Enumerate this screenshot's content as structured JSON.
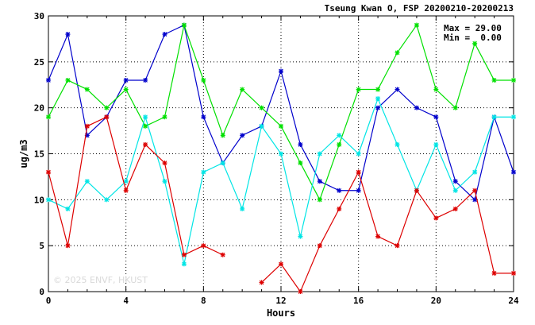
{
  "chart_data": {
    "type": "line",
    "title": "Tseung Kwan O, FSP 20200210-20200213",
    "xlabel": "Hours",
    "ylabel": "ug/m3",
    "xlim": [
      0,
      24
    ],
    "ylim": [
      0,
      30
    ],
    "xticks": [
      0,
      4,
      8,
      12,
      16,
      20,
      24
    ],
    "yticks": [
      0,
      5,
      10,
      15,
      20,
      25,
      30
    ],
    "grid": true,
    "x": [
      0,
      1,
      2,
      3,
      4,
      5,
      6,
      7,
      8,
      9,
      10,
      11,
      12,
      13,
      14,
      15,
      16,
      17,
      18,
      19,
      20,
      21,
      22,
      23,
      24
    ],
    "series": [
      {
        "color": "#0000cc",
        "values": [
          23,
          28,
          17,
          19,
          23,
          23,
          28,
          29,
          19,
          14,
          17,
          18,
          24,
          16,
          12,
          11,
          11,
          20,
          22,
          20,
          19,
          12,
          10,
          19,
          13
        ]
      },
      {
        "color": "#00e000",
        "values": [
          19,
          23,
          22,
          20,
          22,
          18,
          19,
          29,
          23,
          17,
          22,
          20,
          18,
          14,
          10,
          16,
          22,
          22,
          26,
          29,
          22,
          20,
          27,
          23,
          23
        ]
      },
      {
        "color": "#00e5e5",
        "values": [
          10,
          9,
          12,
          10,
          12,
          19,
          12,
          3,
          13,
          14,
          9,
          18,
          15,
          6,
          15,
          17,
          15,
          21,
          16,
          11,
          16,
          11,
          13,
          19,
          19
        ]
      },
      {
        "color": "#dd0000",
        "values": [
          13,
          5,
          18,
          19,
          11,
          16,
          14,
          4,
          5,
          4,
          null,
          1,
          3,
          0,
          5,
          9,
          13,
          6,
          5,
          11,
          8,
          9,
          11,
          2,
          2
        ]
      }
    ],
    "stats": {
      "max_label": "Max = 29.00",
      "min_label": "Min =  0.00"
    },
    "watermark": "© 2025  ENVF, HKUST"
  }
}
